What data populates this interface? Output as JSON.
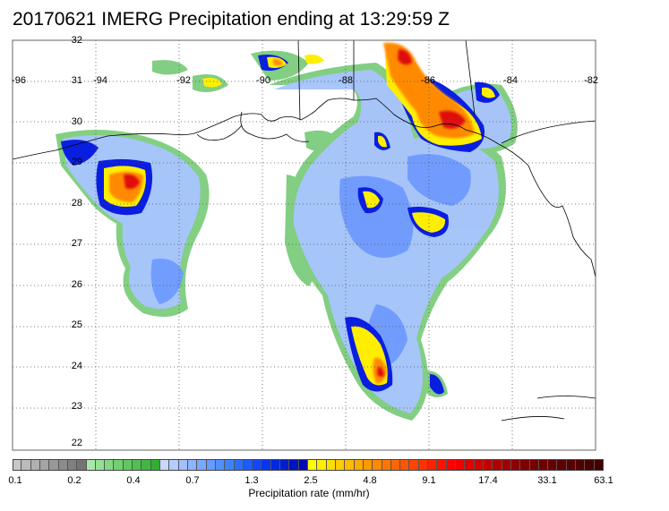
{
  "title": "20170621 IMERG Precipitation ending at 13:29:59 Z",
  "map": {
    "lat_range": [
      22,
      32
    ],
    "lon_range": [
      -96,
      -82
    ],
    "lat_labels": [
      "32",
      "31",
      "30",
      "29",
      "28",
      "27",
      "26",
      "25",
      "24",
      "23",
      "22"
    ],
    "lon_labels": [
      "-96",
      "-94",
      "-92",
      "-90",
      "-88",
      "-86",
      "-84",
      "-82"
    ],
    "grid": "dotted"
  },
  "colorbar": {
    "title": "Precipitation rate (mm/hr)",
    "ticks": [
      "0.1",
      "0.2",
      "0.4",
      "0.7",
      "1.3",
      "2.5",
      "4.8",
      "9.1",
      "17.4",
      "33.1",
      "63.1"
    ],
    "colors": [
      "#c8c8c8",
      "#bcbcbc",
      "#b0b0b0",
      "#a4a4a4",
      "#989898",
      "#8c8c8c",
      "#808080",
      "#747474",
      "#a8e8a8",
      "#96e096",
      "#84d884",
      "#72d072",
      "#60c860",
      "#50c050",
      "#40b840",
      "#30b030",
      "#c8d8ff",
      "#b4ccff",
      "#a0c0ff",
      "#8cb4ff",
      "#78a8ff",
      "#649cff",
      "#5090ff",
      "#3c84ff",
      "#2870ff",
      "#1c5cff",
      "#1048ff",
      "#0836f0",
      "#0028e0",
      "#001ed0",
      "#0014c0",
      "#000ab0",
      "#ffff00",
      "#ffee00",
      "#ffdd00",
      "#ffcc00",
      "#ffbb00",
      "#ffaa00",
      "#ff9900",
      "#ff8800",
      "#ff7700",
      "#ff6600",
      "#ff5500",
      "#ff4400",
      "#ff3300",
      "#ff2200",
      "#ff1100",
      "#ff0000",
      "#f00000",
      "#e00000",
      "#d00000",
      "#c00000",
      "#b00000",
      "#a00000",
      "#900000",
      "#800000",
      "#780000",
      "#700000",
      "#680000",
      "#600000",
      "#580000",
      "#500000",
      "#480000",
      "#400000"
    ]
  }
}
